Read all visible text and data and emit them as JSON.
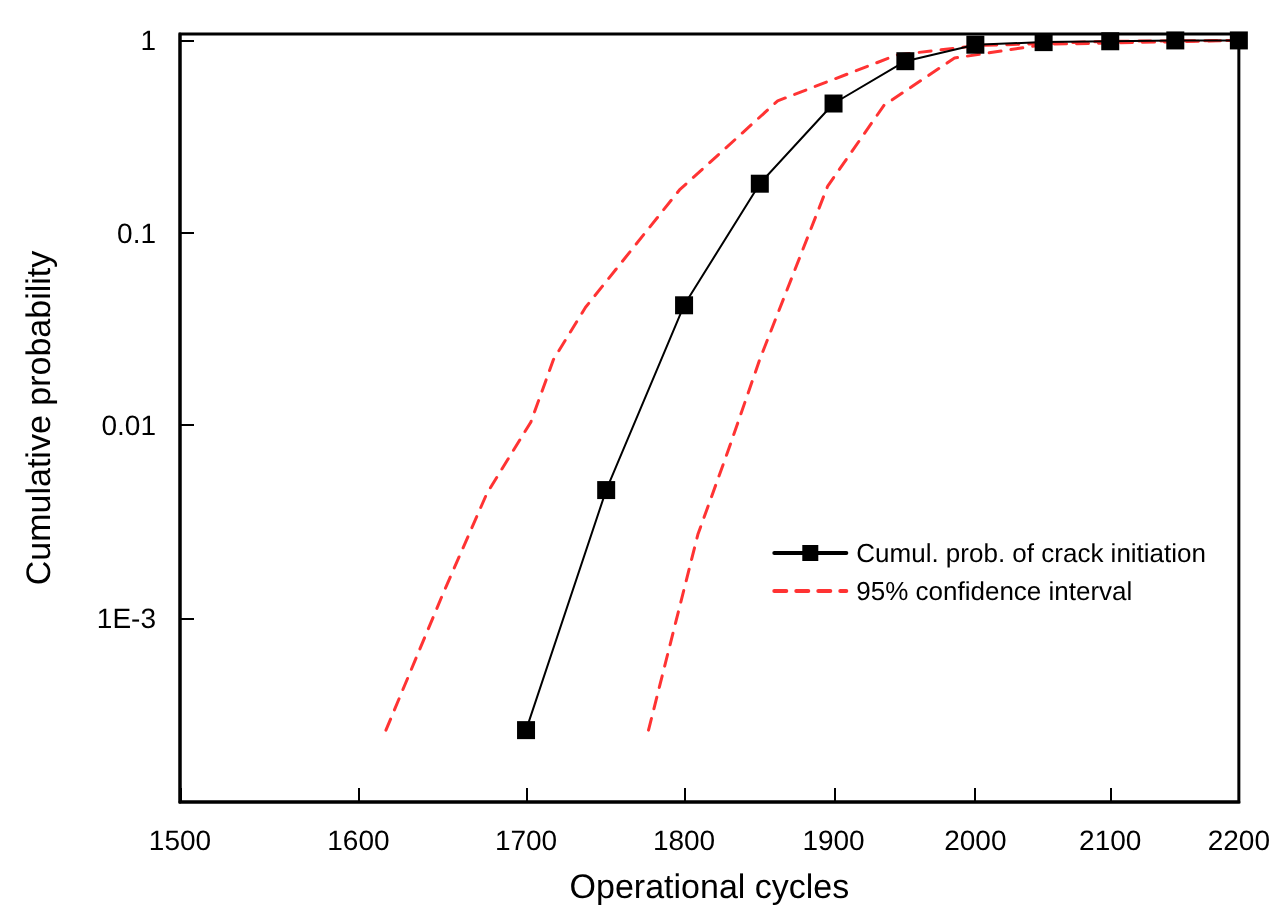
{
  "chart_data": {
    "type": "line",
    "xlabel": "Operational cycles",
    "ylabel": "Cumulative probability",
    "log": "xy",
    "xlim": [
      1500,
      2200
    ],
    "ylim": [
      0.00011,
      1.08
    ],
    "xticks": [
      1500,
      1600,
      1700,
      1800,
      1900,
      2000,
      2100,
      2200
    ],
    "yticks": [
      {
        "value": 0.001,
        "label": "1E-3"
      },
      0.01,
      0.1,
      1
    ],
    "legend": "right",
    "grid": false,
    "series": [
      {
        "name": "Cumul. prob. of crack initiation",
        "color": "#000000",
        "marker": "square",
        "line_style": "solid",
        "x": [
          1700,
          1750,
          1800,
          1850,
          1900,
          1950,
          2000,
          2050,
          2100,
          2150,
          2200
        ],
        "values": [
          0.00026,
          0.0046,
          0.042,
          0.18,
          0.47,
          0.78,
          0.95,
          0.98,
          0.99,
          1,
          1
        ]
      },
      {
        "name": "95% confidence interval",
        "color": "#ff3333",
        "marker": "none",
        "line_style": "dashed",
        "x": [
          1616,
          1650,
          1676,
          1703,
          1717,
          1737,
          1797,
          1862,
          1944,
          2001,
          2100,
          2200
        ],
        "values": [
          0.00026,
          0.00135,
          0.0044,
          0.0104,
          0.022,
          0.041,
          0.167,
          0.485,
          0.84,
          0.94,
          0.99,
          1
        ]
      },
      {
        "color": "#ff3333",
        "marker": "none",
        "line_style": "dashed",
        "x": [
          1777,
          1809,
          1829,
          1850,
          1896,
          1935,
          1985,
          2052,
          2200
        ],
        "values": [
          0.00026,
          0.0027,
          0.0074,
          0.022,
          0.175,
          0.46,
          0.81,
          0.955,
          1
        ]
      }
    ]
  }
}
